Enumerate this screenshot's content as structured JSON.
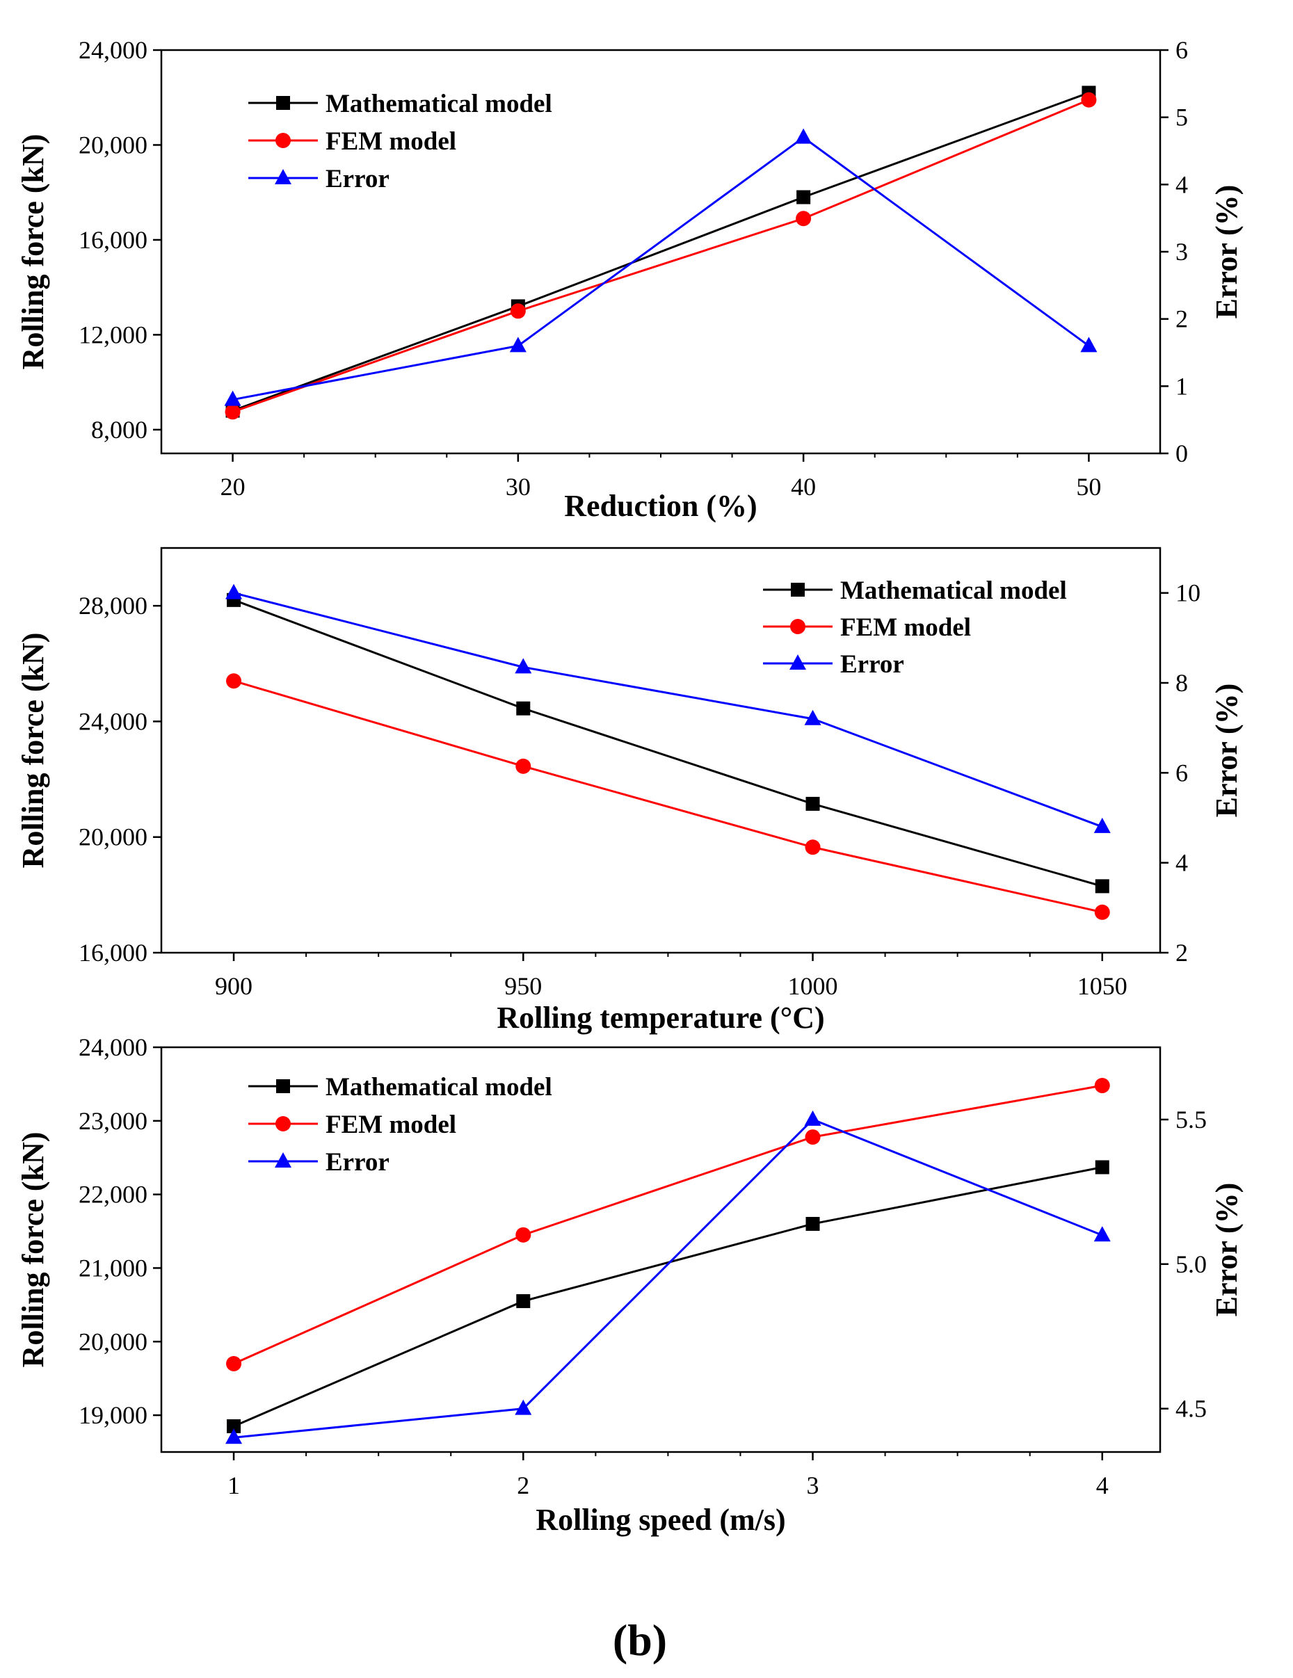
{
  "figure_label": "(b)",
  "colors": {
    "mathematical": "#000000",
    "fem": "#ff0000",
    "error": "#0000ff",
    "background": "#ffffff"
  },
  "chart_data": [
    {
      "type": "line",
      "x": [
        20,
        30,
        40,
        50
      ],
      "xlabel": "Reduction (%)",
      "ylabel_left": "Rolling force (kN)",
      "ylabel_right": "Error (%)",
      "xlim": [
        17.5,
        52.5
      ],
      "xticks": [
        20,
        30,
        40,
        50
      ],
      "xtick_labels": [
        "20",
        "30",
        "40",
        "50"
      ],
      "ylim_left": [
        7000,
        24000
      ],
      "yticks_left": [
        8000,
        12000,
        16000,
        20000,
        24000
      ],
      "ytick_labels_left": [
        "8,000",
        "12,000",
        "16,000",
        "20,000",
        "24,000"
      ],
      "ylim_right": [
        0,
        6
      ],
      "yticks_right": [
        0,
        1,
        2,
        3,
        4,
        5,
        6
      ],
      "ytick_labels_right": [
        "0",
        "1",
        "2",
        "3",
        "4",
        "5",
        "6"
      ],
      "legend_position": "top-left",
      "series": [
        {
          "name": "Mathematical model",
          "axis": "left",
          "marker": "square",
          "color_key": "mathematical",
          "values": [
            8800,
            13200,
            17800,
            22200
          ]
        },
        {
          "name": "FEM model",
          "axis": "left",
          "marker": "circle",
          "color_key": "fem",
          "values": [
            8750,
            13000,
            16900,
            21900
          ]
        },
        {
          "name": "Error",
          "axis": "right",
          "marker": "triangle",
          "color_key": "error",
          "values": [
            0.8,
            1.6,
            4.7,
            1.6
          ]
        }
      ]
    },
    {
      "type": "line",
      "x": [
        900,
        950,
        1000,
        1050
      ],
      "xlabel": "Rolling temperature (°C)",
      "ylabel_left": "Rolling force (kN)",
      "ylabel_right": "Error (%)",
      "xlim": [
        887.5,
        1060
      ],
      "xticks": [
        900,
        950,
        1000,
        1050
      ],
      "xtick_labels": [
        "900",
        "950",
        "1000",
        "1050"
      ],
      "ylim_left": [
        16000,
        30000
      ],
      "yticks_left": [
        16000,
        20000,
        24000,
        28000
      ],
      "ytick_labels_left": [
        "16,000",
        "20,000",
        "24,000",
        "28,000"
      ],
      "ylim_right": [
        2,
        11
      ],
      "yticks_right": [
        2,
        4,
        6,
        8,
        10
      ],
      "ytick_labels_right": [
        "2",
        "4",
        "6",
        "8",
        "10"
      ],
      "legend_position": "top-right",
      "series": [
        {
          "name": "Mathematical model",
          "axis": "left",
          "marker": "square",
          "color_key": "mathematical",
          "values": [
            28200,
            24450,
            21150,
            18300
          ]
        },
        {
          "name": "FEM model",
          "axis": "left",
          "marker": "circle",
          "color_key": "fem",
          "values": [
            25400,
            22450,
            19650,
            17400
          ]
        },
        {
          "name": "Error",
          "axis": "right",
          "marker": "triangle",
          "color_key": "error",
          "values": [
            10.0,
            8.35,
            7.2,
            4.8
          ]
        }
      ]
    },
    {
      "type": "line",
      "x": [
        1,
        2,
        3,
        4
      ],
      "xlabel": "Rolling speed (m/s)",
      "ylabel_left": "Rolling force (kN)",
      "ylabel_right": "Error (%)",
      "xlim": [
        0.75,
        4.2
      ],
      "xticks": [
        1,
        2,
        3,
        4
      ],
      "xtick_labels": [
        "1",
        "2",
        "3",
        "4"
      ],
      "ylim_left": [
        18500,
        24000
      ],
      "yticks_left": [
        19000,
        20000,
        21000,
        22000,
        23000,
        24000
      ],
      "ytick_labels_left": [
        "19,000",
        "20,000",
        "21,000",
        "22,000",
        "23,000",
        "24,000"
      ],
      "ylim_right": [
        4.35,
        5.75
      ],
      "yticks_right": [
        4.5,
        5.0,
        5.5
      ],
      "ytick_labels_right": [
        "4.5",
        "5.0",
        "5.5"
      ],
      "legend_position": "top-left",
      "series": [
        {
          "name": "Mathematical model",
          "axis": "left",
          "marker": "square",
          "color_key": "mathematical",
          "values": [
            18850,
            20550,
            21600,
            22370
          ]
        },
        {
          "name": "FEM model",
          "axis": "left",
          "marker": "circle",
          "color_key": "fem",
          "values": [
            19700,
            21450,
            22780,
            23480
          ]
        },
        {
          "name": "Error",
          "axis": "right",
          "marker": "triangle",
          "color_key": "error",
          "values": [
            4.4,
            4.5,
            5.5,
            5.1
          ]
        }
      ]
    }
  ]
}
